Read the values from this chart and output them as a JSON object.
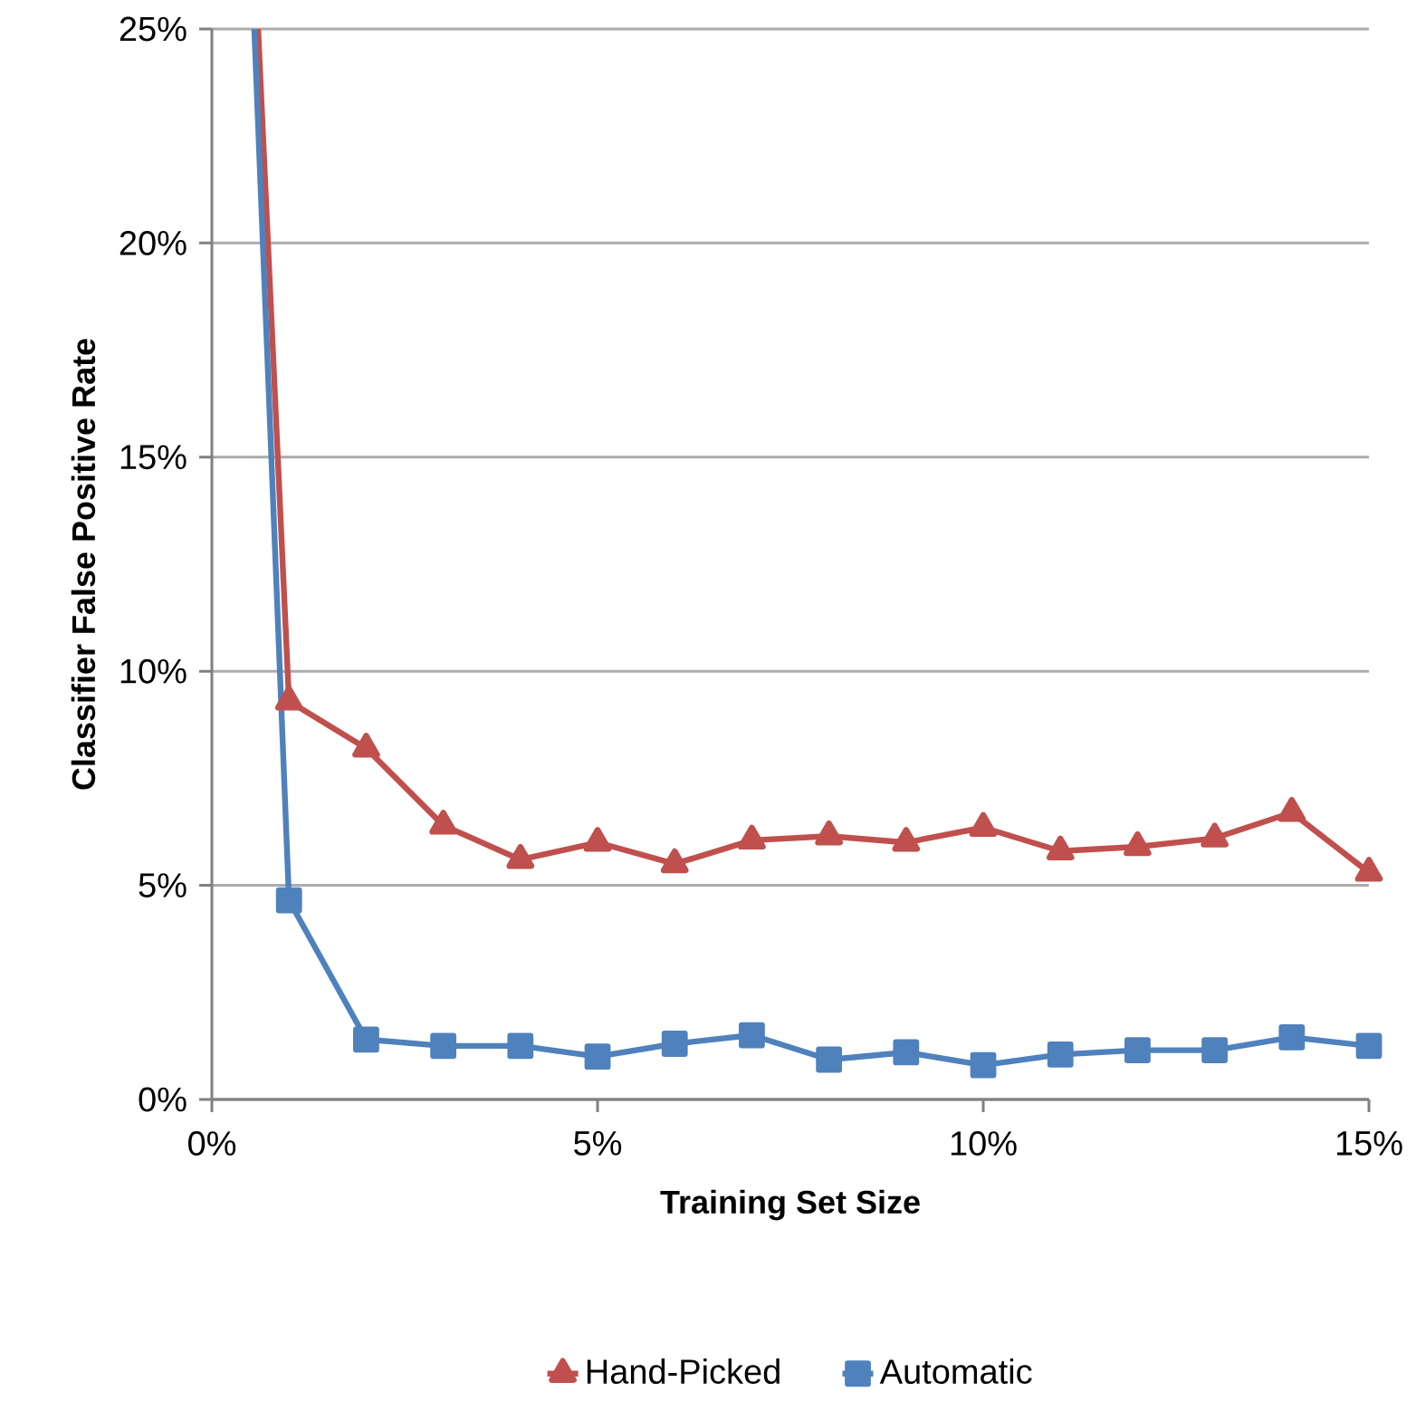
{
  "chart_data": {
    "type": "line",
    "xlabel": "Training Set Size",
    "ylabel": "Classifier  False Positive  Rate",
    "xlim": [
      0,
      15
    ],
    "ylim": [
      0,
      25
    ],
    "xticks": [
      {
        "value": 0,
        "label": "0%"
      },
      {
        "value": 5,
        "label": "5%"
      },
      {
        "value": 10,
        "label": "10%"
      },
      {
        "value": 15,
        "label": "15%"
      }
    ],
    "yticks": [
      {
        "value": 0,
        "label": "0%"
      },
      {
        "value": 5,
        "label": "5%"
      },
      {
        "value": 10,
        "label": "10%"
      },
      {
        "value": 15,
        "label": "15%"
      },
      {
        "value": 20,
        "label": "20%"
      },
      {
        "value": 25,
        "label": "25%"
      }
    ],
    "grid": "y",
    "legend": "bottom",
    "series": [
      {
        "name": "Hand-Picked",
        "color": "#c0504d",
        "marker": "triangle",
        "x": [
          0.6,
          1,
          2,
          3,
          4,
          5,
          6,
          7,
          8,
          9,
          10,
          11,
          12,
          13,
          14,
          15
        ],
        "values": [
          25,
          9.3,
          8.2,
          6.4,
          5.6,
          6.0,
          5.5,
          6.05,
          6.15,
          6.0,
          6.35,
          5.8,
          5.9,
          6.1,
          6.7,
          5.3
        ]
      },
      {
        "name": "Automatic",
        "color": "#4f81bd",
        "marker": "square",
        "x": [
          0.55,
          1,
          2,
          3,
          4,
          5,
          6,
          7,
          8,
          9,
          10,
          11,
          12,
          13,
          14,
          15
        ],
        "values": [
          25,
          4.65,
          1.4,
          1.25,
          1.25,
          1.0,
          1.3,
          1.5,
          0.93,
          1.1,
          0.8,
          1.05,
          1.15,
          1.15,
          1.45,
          1.25
        ]
      }
    ]
  }
}
